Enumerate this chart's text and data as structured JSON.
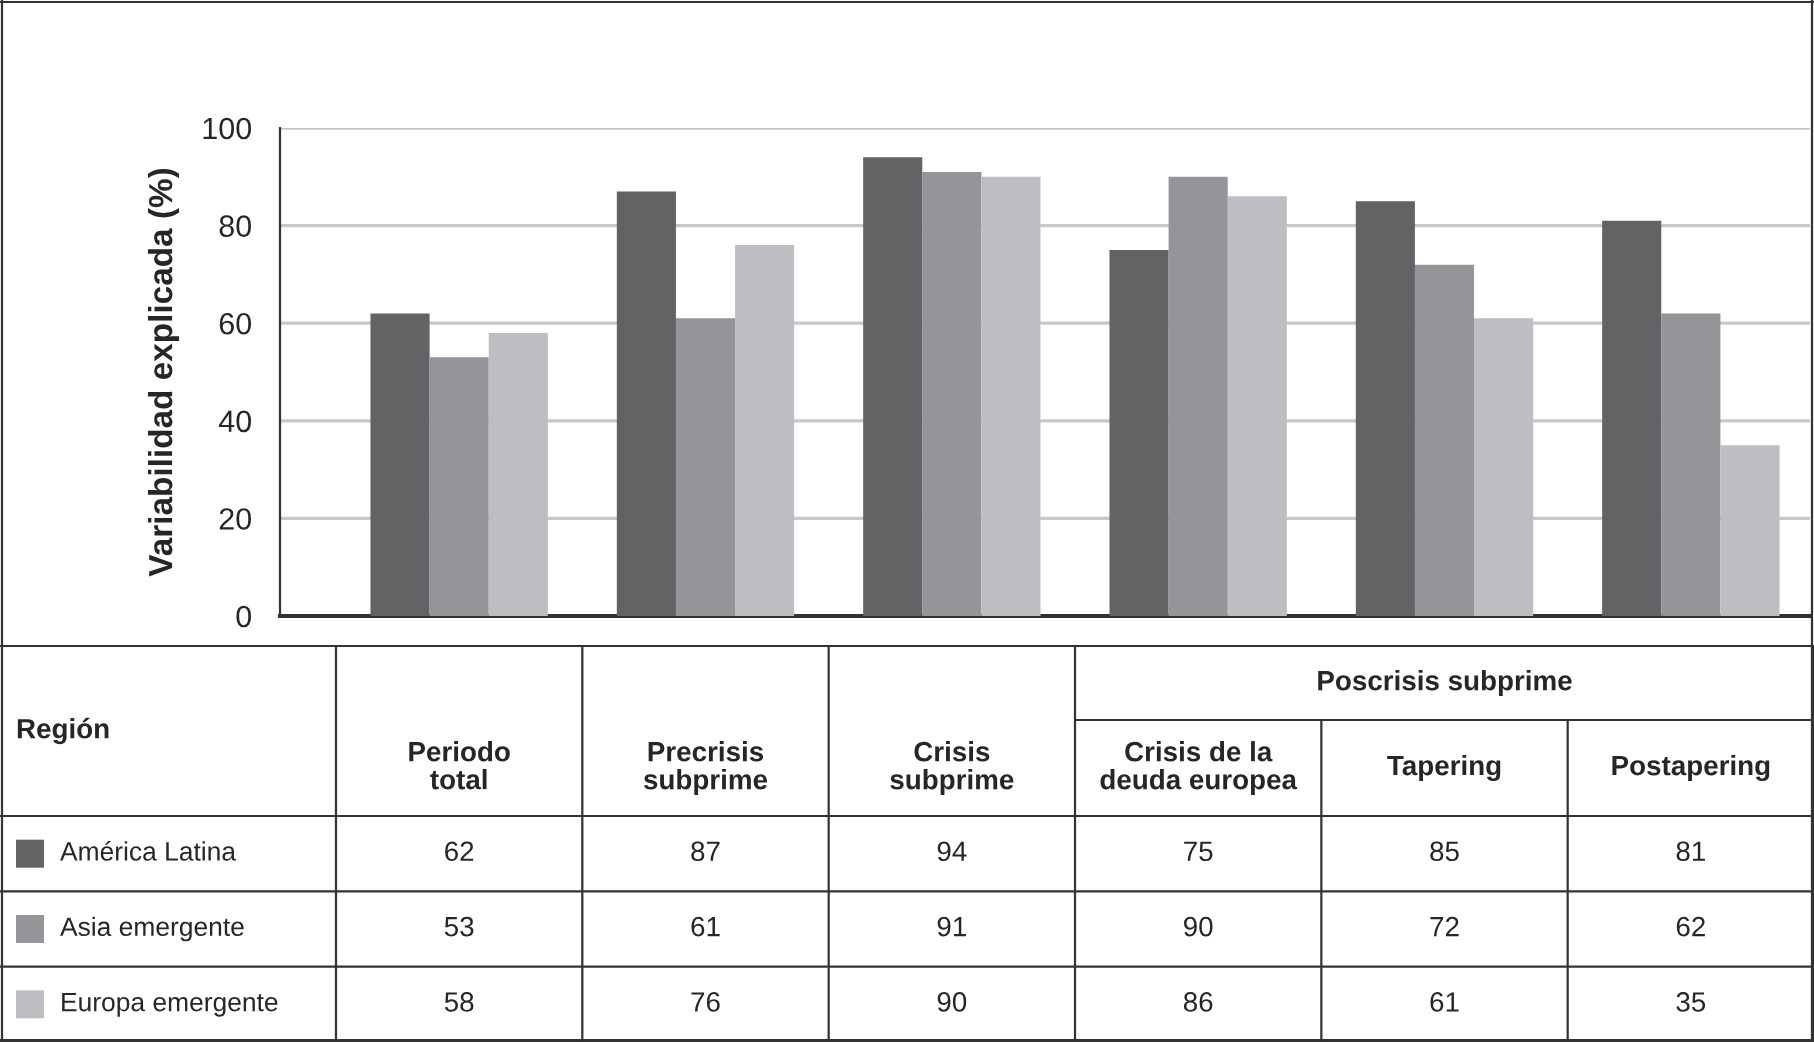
{
  "chart_data": {
    "type": "bar",
    "ylabel": "Variabilidad explicada (%)",
    "categories": [
      "Periodo\ntotal",
      "Precrisis\nsubprime",
      "Crisis\nsubprime",
      "Crisis de la\ndeuda europea",
      "Tapering",
      "Postapering"
    ],
    "series": [
      {
        "name": "América Latina",
        "color": "#636366",
        "values": [
          62,
          87,
          94,
          75,
          85,
          81
        ]
      },
      {
        "name": "Asia emergente",
        "color": "#939598",
        "values": [
          53,
          61,
          91,
          90,
          72,
          62
        ]
      },
      {
        "name": "Europa emergente",
        "color": "#bcbec1",
        "values": [
          58,
          76,
          90,
          86,
          61,
          35
        ]
      }
    ],
    "data_labels": true,
    "legend_title": "Región",
    "annotations": [
      "Poscrisis subprime"
    ],
    "ylim": [
      0,
      100
    ],
    "yticks": [
      0,
      20,
      40,
      60,
      80,
      100
    ],
    "grid": "y",
    "legend": "bottom"
  }
}
